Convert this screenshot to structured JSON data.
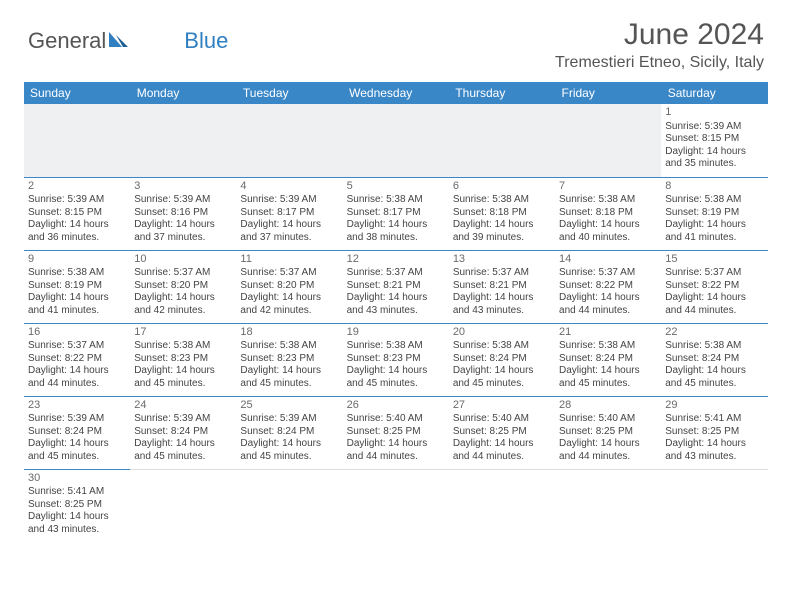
{
  "logo": {
    "text1": "General",
    "text2": "Blue"
  },
  "title": "June 2024",
  "location": "Tremestieri Etneo, Sicily, Italy",
  "colors": {
    "header_bg": "#3a87c8",
    "header_text": "#ffffff",
    "text": "#444444",
    "title_text": "#555555",
    "rule": "#3a87c8"
  },
  "day_headers": [
    "Sunday",
    "Monday",
    "Tuesday",
    "Wednesday",
    "Thursday",
    "Friday",
    "Saturday"
  ],
  "first_weekday_index": 6,
  "days": [
    {
      "n": 1,
      "sunrise": "5:39 AM",
      "sunset": "8:15 PM",
      "daylight": "14 hours and 35 minutes."
    },
    {
      "n": 2,
      "sunrise": "5:39 AM",
      "sunset": "8:15 PM",
      "daylight": "14 hours and 36 minutes."
    },
    {
      "n": 3,
      "sunrise": "5:39 AM",
      "sunset": "8:16 PM",
      "daylight": "14 hours and 37 minutes."
    },
    {
      "n": 4,
      "sunrise": "5:39 AM",
      "sunset": "8:17 PM",
      "daylight": "14 hours and 37 minutes."
    },
    {
      "n": 5,
      "sunrise": "5:38 AM",
      "sunset": "8:17 PM",
      "daylight": "14 hours and 38 minutes."
    },
    {
      "n": 6,
      "sunrise": "5:38 AM",
      "sunset": "8:18 PM",
      "daylight": "14 hours and 39 minutes."
    },
    {
      "n": 7,
      "sunrise": "5:38 AM",
      "sunset": "8:18 PM",
      "daylight": "14 hours and 40 minutes."
    },
    {
      "n": 8,
      "sunrise": "5:38 AM",
      "sunset": "8:19 PM",
      "daylight": "14 hours and 41 minutes."
    },
    {
      "n": 9,
      "sunrise": "5:38 AM",
      "sunset": "8:19 PM",
      "daylight": "14 hours and 41 minutes."
    },
    {
      "n": 10,
      "sunrise": "5:37 AM",
      "sunset": "8:20 PM",
      "daylight": "14 hours and 42 minutes."
    },
    {
      "n": 11,
      "sunrise": "5:37 AM",
      "sunset": "8:20 PM",
      "daylight": "14 hours and 42 minutes."
    },
    {
      "n": 12,
      "sunrise": "5:37 AM",
      "sunset": "8:21 PM",
      "daylight": "14 hours and 43 minutes."
    },
    {
      "n": 13,
      "sunrise": "5:37 AM",
      "sunset": "8:21 PM",
      "daylight": "14 hours and 43 minutes."
    },
    {
      "n": 14,
      "sunrise": "5:37 AM",
      "sunset": "8:22 PM",
      "daylight": "14 hours and 44 minutes."
    },
    {
      "n": 15,
      "sunrise": "5:37 AM",
      "sunset": "8:22 PM",
      "daylight": "14 hours and 44 minutes."
    },
    {
      "n": 16,
      "sunrise": "5:37 AM",
      "sunset": "8:22 PM",
      "daylight": "14 hours and 44 minutes."
    },
    {
      "n": 17,
      "sunrise": "5:38 AM",
      "sunset": "8:23 PM",
      "daylight": "14 hours and 45 minutes."
    },
    {
      "n": 18,
      "sunrise": "5:38 AM",
      "sunset": "8:23 PM",
      "daylight": "14 hours and 45 minutes."
    },
    {
      "n": 19,
      "sunrise": "5:38 AM",
      "sunset": "8:23 PM",
      "daylight": "14 hours and 45 minutes."
    },
    {
      "n": 20,
      "sunrise": "5:38 AM",
      "sunset": "8:24 PM",
      "daylight": "14 hours and 45 minutes."
    },
    {
      "n": 21,
      "sunrise": "5:38 AM",
      "sunset": "8:24 PM",
      "daylight": "14 hours and 45 minutes."
    },
    {
      "n": 22,
      "sunrise": "5:38 AM",
      "sunset": "8:24 PM",
      "daylight": "14 hours and 45 minutes."
    },
    {
      "n": 23,
      "sunrise": "5:39 AM",
      "sunset": "8:24 PM",
      "daylight": "14 hours and 45 minutes."
    },
    {
      "n": 24,
      "sunrise": "5:39 AM",
      "sunset": "8:24 PM",
      "daylight": "14 hours and 45 minutes."
    },
    {
      "n": 25,
      "sunrise": "5:39 AM",
      "sunset": "8:24 PM",
      "daylight": "14 hours and 45 minutes."
    },
    {
      "n": 26,
      "sunrise": "5:40 AM",
      "sunset": "8:25 PM",
      "daylight": "14 hours and 44 minutes."
    },
    {
      "n": 27,
      "sunrise": "5:40 AM",
      "sunset": "8:25 PM",
      "daylight": "14 hours and 44 minutes."
    },
    {
      "n": 28,
      "sunrise": "5:40 AM",
      "sunset": "8:25 PM",
      "daylight": "14 hours and 44 minutes."
    },
    {
      "n": 29,
      "sunrise": "5:41 AM",
      "sunset": "8:25 PM",
      "daylight": "14 hours and 43 minutes."
    },
    {
      "n": 30,
      "sunrise": "5:41 AM",
      "sunset": "8:25 PM",
      "daylight": "14 hours and 43 minutes."
    }
  ],
  "labels": {
    "sunrise": "Sunrise:",
    "sunset": "Sunset:",
    "daylight": "Daylight:"
  }
}
